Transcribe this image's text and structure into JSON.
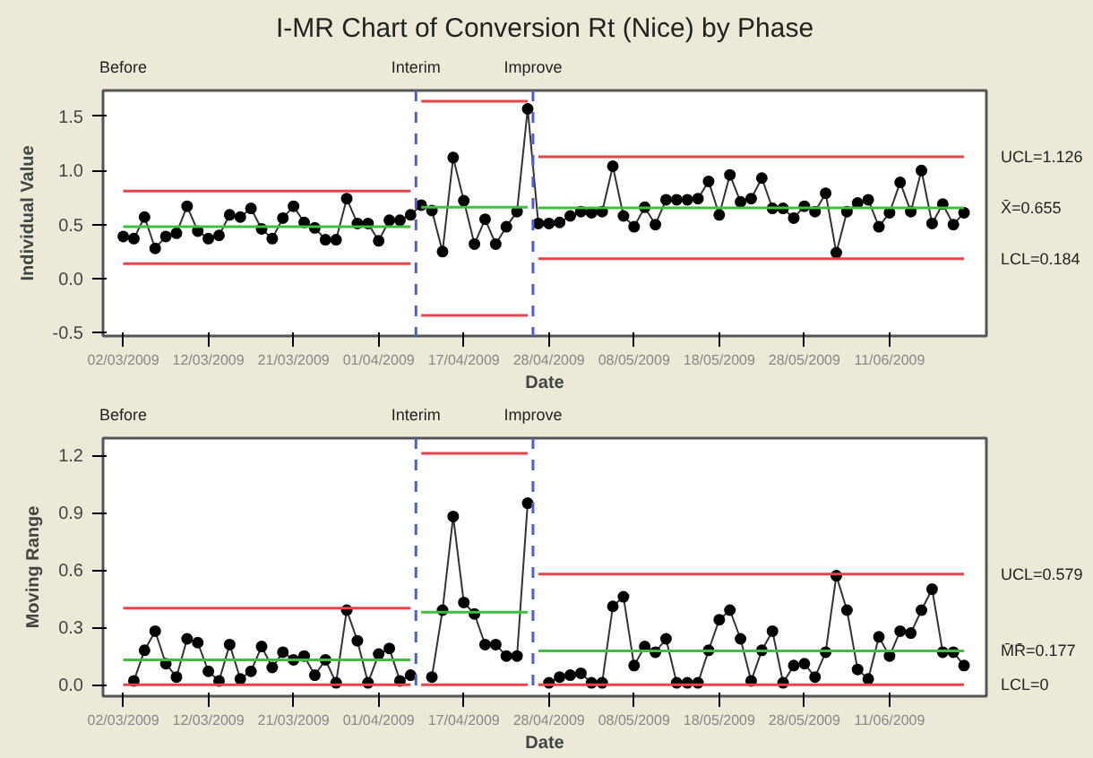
{
  "chart_data": [
    {
      "type": "line",
      "title": "I-MR Chart of Conversion Rt (Nice) by Phase",
      "xlabel": "Date",
      "ylabel": "Individual Value",
      "marker": "circle",
      "grid": false,
      "categories": [
        "02/03/2009",
        null,
        null,
        null,
        null,
        null,
        null,
        null,
        "12/03/2009",
        null,
        null,
        null,
        null,
        null,
        null,
        null,
        "21/03/2009",
        null,
        null,
        null,
        null,
        null,
        null,
        null,
        "01/04/2009",
        null,
        null,
        null,
        null,
        null,
        null,
        null,
        "17/04/2009",
        null,
        null,
        null,
        null,
        null,
        null,
        null,
        "28/04/2009",
        null,
        null,
        null,
        null,
        null,
        null,
        null,
        "08/05/2009",
        null,
        null,
        null,
        null,
        null,
        null,
        null,
        "18/05/2009",
        null,
        null,
        null,
        null,
        null,
        null,
        null,
        "28/05/2009",
        null,
        null,
        null,
        null,
        null,
        null,
        null,
        "11/06/2009",
        null,
        null,
        null,
        null,
        null,
        null,
        null
      ],
      "ylim": [
        -0.53,
        1.74
      ],
      "yticks": [
        {
          "value": -0.5,
          "label": "-0.5"
        },
        {
          "value": 0,
          "label": "0.0"
        },
        {
          "value": 0.5,
          "label": "0.5"
        },
        {
          "value": 1,
          "label": "1.0"
        },
        {
          "value": 1.5,
          "label": "1.5"
        }
      ],
      "series": [
        {
          "color": "#333333",
          "values": [
            0.39,
            0.37,
            0.57,
            0.28,
            0.39,
            0.42,
            0.67,
            0.44,
            0.37,
            0.4,
            0.59,
            0.57,
            0.65,
            0.46,
            0.37,
            0.56,
            0.67,
            0.52,
            0.47,
            0.36,
            0.36,
            0.74,
            0.51,
            0.51,
            0.35,
            0.54,
            0.54,
            0.59,
            0.68,
            0.63,
            0.25,
            1.12,
            0.72,
            0.32,
            0.55,
            0.32,
            0.48,
            0.62,
            1.57,
            0.51,
            0.51,
            0.52,
            0.58,
            0.62,
            0.61,
            0.62,
            1.04,
            0.58,
            0.48,
            0.66,
            0.5,
            0.73,
            0.73,
            0.73,
            0.74,
            0.9,
            0.59,
            0.96,
            0.71,
            0.74,
            0.93,
            0.65,
            0.65,
            0.56,
            0.67,
            0.62,
            0.79,
            0.24,
            0.62,
            0.7,
            0.73,
            0.48,
            0.61,
            0.89,
            0.62,
            1.0,
            0.51,
            0.69,
            0.5,
            0.61
          ]
        },
        {
          "color": "#e8434a",
          "marker": "none",
          "values": [
            0.81,
            0.81,
            0.81,
            0.81,
            0.81,
            0.81,
            0.81,
            0.81,
            0.81,
            0.81,
            0.81,
            0.81,
            0.81,
            0.81,
            0.81,
            0.81,
            0.81,
            0.81,
            0.81,
            0.81,
            0.81,
            0.81,
            0.81,
            0.81,
            0.81,
            0.81,
            0.81,
            0.81,
            null,
            null,
            null,
            null,
            null,
            null,
            null,
            null,
            null,
            null,
            null,
            null,
            null,
            null,
            null,
            null,
            null,
            null,
            null,
            null,
            null,
            null,
            null,
            null,
            null,
            null,
            null,
            null,
            null,
            null,
            null,
            null,
            null,
            null,
            null,
            null,
            null,
            null,
            null,
            null,
            null,
            null,
            null,
            null,
            null,
            null,
            null,
            null,
            null,
            null,
            null,
            null
          ]
        },
        {
          "color": "#3fbf3f",
          "marker": "none",
          "values": [
            0.48,
            0.48,
            0.48,
            0.48,
            0.48,
            0.48,
            0.48,
            0.48,
            0.48,
            0.48,
            0.48,
            0.48,
            0.48,
            0.48,
            0.48,
            0.48,
            0.48,
            0.48,
            0.48,
            0.48,
            0.48,
            0.48,
            0.48,
            0.48,
            0.48,
            0.48,
            0.48,
            0.48,
            null,
            null,
            null,
            null,
            null,
            null,
            null,
            null,
            null,
            null,
            null,
            null,
            null,
            null,
            null,
            null,
            null,
            null,
            null,
            null,
            null,
            null,
            null,
            null,
            null,
            null,
            null,
            null,
            null,
            null,
            null,
            null,
            null,
            null,
            null,
            null,
            null,
            null,
            null,
            null,
            null,
            null,
            null,
            null,
            null,
            null,
            null,
            null,
            null,
            null,
            null,
            null
          ]
        },
        {
          "color": "#e8434a",
          "marker": "none",
          "values": [
            0.14,
            0.14,
            0.14,
            0.14,
            0.14,
            0.14,
            0.14,
            0.14,
            0.14,
            0.14,
            0.14,
            0.14,
            0.14,
            0.14,
            0.14,
            0.14,
            0.14,
            0.14,
            0.14,
            0.14,
            0.14,
            0.14,
            0.14,
            0.14,
            0.14,
            0.14,
            0.14,
            0.14,
            null,
            null,
            null,
            null,
            null,
            null,
            null,
            null,
            null,
            null,
            null,
            null,
            null,
            null,
            null,
            null,
            null,
            null,
            null,
            null,
            null,
            null,
            null,
            null,
            null,
            null,
            null,
            null,
            null,
            null,
            null,
            null,
            null,
            null,
            null,
            null,
            null,
            null,
            null,
            null,
            null,
            null,
            null,
            null,
            null,
            null,
            null,
            null,
            null,
            null,
            null,
            null
          ]
        },
        {
          "color": "#e8434a",
          "marker": "none",
          "values": [
            null,
            null,
            null,
            null,
            null,
            null,
            null,
            null,
            null,
            null,
            null,
            null,
            null,
            null,
            null,
            null,
            null,
            null,
            null,
            null,
            null,
            null,
            null,
            null,
            null,
            null,
            null,
            null,
            1.64,
            1.64,
            1.64,
            1.64,
            1.64,
            1.64,
            1.64,
            1.64,
            1.64,
            1.64,
            1.64,
            null,
            null,
            null,
            null,
            null,
            null,
            null,
            null,
            null,
            null,
            null,
            null,
            null,
            null,
            null,
            null,
            null,
            null,
            null,
            null,
            null,
            null,
            null,
            null,
            null,
            null,
            null,
            null,
            null,
            null,
            null,
            null,
            null,
            null,
            null,
            null,
            null,
            null,
            null,
            null,
            null
          ]
        },
        {
          "color": "#3fbf3f",
          "marker": "none",
          "values": [
            null,
            null,
            null,
            null,
            null,
            null,
            null,
            null,
            null,
            null,
            null,
            null,
            null,
            null,
            null,
            null,
            null,
            null,
            null,
            null,
            null,
            null,
            null,
            null,
            null,
            null,
            null,
            null,
            0.66,
            0.66,
            0.66,
            0.66,
            0.66,
            0.66,
            0.66,
            0.66,
            0.66,
            0.66,
            0.66,
            null,
            null,
            null,
            null,
            null,
            null,
            null,
            null,
            null,
            null,
            null,
            null,
            null,
            null,
            null,
            null,
            null,
            null,
            null,
            null,
            null,
            null,
            null,
            null,
            null,
            null,
            null,
            null,
            null,
            null,
            null,
            null,
            null,
            null,
            null,
            null,
            null,
            null,
            null,
            null,
            null
          ]
        },
        {
          "color": "#e8434a",
          "marker": "none",
          "values": [
            null,
            null,
            null,
            null,
            null,
            null,
            null,
            null,
            null,
            null,
            null,
            null,
            null,
            null,
            null,
            null,
            null,
            null,
            null,
            null,
            null,
            null,
            null,
            null,
            null,
            null,
            null,
            null,
            -0.34,
            -0.34,
            -0.34,
            -0.34,
            -0.34,
            -0.34,
            -0.34,
            -0.34,
            -0.34,
            -0.34,
            -0.34,
            null,
            null,
            null,
            null,
            null,
            null,
            null,
            null,
            null,
            null,
            null,
            null,
            null,
            null,
            null,
            null,
            null,
            null,
            null,
            null,
            null,
            null,
            null,
            null,
            null,
            null,
            null,
            null,
            null,
            null,
            null,
            null,
            null,
            null,
            null,
            null,
            null,
            null,
            null,
            null,
            null
          ]
        },
        {
          "color": "#e8434a",
          "marker": "none",
          "values": [
            null,
            null,
            null,
            null,
            null,
            null,
            null,
            null,
            null,
            null,
            null,
            null,
            null,
            null,
            null,
            null,
            null,
            null,
            null,
            null,
            null,
            null,
            null,
            null,
            null,
            null,
            null,
            null,
            null,
            null,
            null,
            null,
            null,
            null,
            null,
            null,
            null,
            null,
            null,
            1.126,
            1.126,
            1.126,
            1.126,
            1.126,
            1.126,
            1.126,
            1.126,
            1.126,
            1.126,
            1.126,
            1.126,
            1.126,
            1.126,
            1.126,
            1.126,
            1.126,
            1.126,
            1.126,
            1.126,
            1.126,
            1.126,
            1.126,
            1.126,
            1.126,
            1.126,
            1.126,
            1.126,
            1.126,
            1.126,
            1.126,
            1.126,
            1.126,
            1.126,
            1.126,
            1.126,
            1.126,
            1.126,
            1.126,
            1.126,
            1.126
          ]
        },
        {
          "color": "#3fbf3f",
          "marker": "none",
          "values": [
            null,
            null,
            null,
            null,
            null,
            null,
            null,
            null,
            null,
            null,
            null,
            null,
            null,
            null,
            null,
            null,
            null,
            null,
            null,
            null,
            null,
            null,
            null,
            null,
            null,
            null,
            null,
            null,
            null,
            null,
            null,
            null,
            null,
            null,
            null,
            null,
            null,
            null,
            null,
            0.655,
            0.655,
            0.655,
            0.655,
            0.655,
            0.655,
            0.655,
            0.655,
            0.655,
            0.655,
            0.655,
            0.655,
            0.655,
            0.655,
            0.655,
            0.655,
            0.655,
            0.655,
            0.655,
            0.655,
            0.655,
            0.655,
            0.655,
            0.655,
            0.655,
            0.655,
            0.655,
            0.655,
            0.655,
            0.655,
            0.655,
            0.655,
            0.655,
            0.655,
            0.655,
            0.655,
            0.655,
            0.655,
            0.655,
            0.655,
            0.655
          ]
        },
        {
          "color": "#e8434a",
          "marker": "none",
          "values": [
            null,
            null,
            null,
            null,
            null,
            null,
            null,
            null,
            null,
            null,
            null,
            null,
            null,
            null,
            null,
            null,
            null,
            null,
            null,
            null,
            null,
            null,
            null,
            null,
            null,
            null,
            null,
            null,
            null,
            null,
            null,
            null,
            null,
            null,
            null,
            null,
            null,
            null,
            null,
            0.184,
            0.184,
            0.184,
            0.184,
            0.184,
            0.184,
            0.184,
            0.184,
            0.184,
            0.184,
            0.184,
            0.184,
            0.184,
            0.184,
            0.184,
            0.184,
            0.184,
            0.184,
            0.184,
            0.184,
            0.184,
            0.184,
            0.184,
            0.184,
            0.184,
            0.184,
            0.184,
            0.184,
            0.184,
            0.184,
            0.184,
            0.184,
            0.184,
            0.184,
            0.184,
            0.184,
            0.184,
            0.184,
            0.184,
            0.184,
            0.184
          ]
        }
      ],
      "annotations": [
        "Before",
        "Interim",
        "Improve",
        "UCL=1.126",
        "X̄=0.655",
        "LCL=0.184"
      ]
    },
    {
      "type": "line",
      "xlabel": "Date",
      "ylabel": "Moving Range",
      "marker": "circle",
      "grid": false,
      "categories": [
        "02/03/2009",
        null,
        null,
        null,
        null,
        null,
        null,
        null,
        "12/03/2009",
        null,
        null,
        null,
        null,
        null,
        null,
        null,
        "21/03/2009",
        null,
        null,
        null,
        null,
        null,
        null,
        null,
        "01/04/2009",
        null,
        null,
        null,
        null,
        null,
        null,
        null,
        "17/04/2009",
        null,
        null,
        null,
        null,
        null,
        null,
        null,
        "28/04/2009",
        null,
        null,
        null,
        null,
        null,
        null,
        null,
        "08/05/2009",
        null,
        null,
        null,
        null,
        null,
        null,
        null,
        "18/05/2009",
        null,
        null,
        null,
        null,
        null,
        null,
        null,
        "28/05/2009",
        null,
        null,
        null,
        null,
        null,
        null,
        null,
        "11/06/2009",
        null,
        null,
        null,
        null,
        null,
        null,
        null
      ],
      "ylim": [
        -0.06,
        1.29
      ],
      "yticks": [
        {
          "value": 0,
          "label": "0.0"
        },
        {
          "value": 0.3,
          "label": "0.3"
        },
        {
          "value": 0.6,
          "label": "0.6"
        },
        {
          "value": 0.9,
          "label": "0.9"
        },
        {
          "value": 1.2,
          "label": "1.2"
        }
      ],
      "series": [
        {
          "color": "#333333",
          "values": [
            null,
            0.02,
            0.18,
            0.28,
            0.11,
            0.04,
            0.24,
            0.22,
            0.07,
            0.02,
            0.21,
            0.03,
            0.07,
            0.2,
            0.09,
            0.17,
            0.13,
            0.15,
            0.05,
            0.13,
            0.01,
            0.39,
            0.23,
            0.01,
            0.16,
            0.19,
            0.02,
            0.05,
            null,
            0.04,
            0.39,
            0.88,
            0.43,
            0.37,
            0.21,
            0.21,
            0.15,
            0.15,
            0.95,
            null,
            0.01,
            0.04,
            0.05,
            0.06,
            0.01,
            0.01,
            0.41,
            0.46,
            0.1,
            0.2,
            0.17,
            0.24,
            0.01,
            0.01,
            0.01,
            0.18,
            0.34,
            0.39,
            0.24,
            0.02,
            0.18,
            0.28,
            0.01,
            0.1,
            0.11,
            0.04,
            0.17,
            0.57,
            0.39,
            0.08,
            0.03,
            0.25,
            0.15,
            0.28,
            0.27,
            0.39,
            0.5,
            0.17,
            0.17,
            0.1
          ]
        },
        {
          "color": "#e8434a",
          "marker": "none",
          "values": [
            0.4,
            0.4,
            0.4,
            0.4,
            0.4,
            0.4,
            0.4,
            0.4,
            0.4,
            0.4,
            0.4,
            0.4,
            0.4,
            0.4,
            0.4,
            0.4,
            0.4,
            0.4,
            0.4,
            0.4,
            0.4,
            0.4,
            0.4,
            0.4,
            0.4,
            0.4,
            0.4,
            0.4,
            null,
            null,
            null,
            null,
            null,
            null,
            null,
            null,
            null,
            null,
            null,
            null,
            null,
            null,
            null,
            null,
            null,
            null,
            null,
            null,
            null,
            null,
            null,
            null,
            null,
            null,
            null,
            null,
            null,
            null,
            null,
            null,
            null,
            null,
            null,
            null,
            null,
            null,
            null,
            null,
            null,
            null,
            null,
            null,
            null,
            null,
            null,
            null,
            null,
            null,
            null,
            null
          ]
        },
        {
          "color": "#3fbf3f",
          "marker": "none",
          "values": [
            0.13,
            0.13,
            0.13,
            0.13,
            0.13,
            0.13,
            0.13,
            0.13,
            0.13,
            0.13,
            0.13,
            0.13,
            0.13,
            0.13,
            0.13,
            0.13,
            0.13,
            0.13,
            0.13,
            0.13,
            0.13,
            0.13,
            0.13,
            0.13,
            0.13,
            0.13,
            0.13,
            0.13,
            null,
            null,
            null,
            null,
            null,
            null,
            null,
            null,
            null,
            null,
            null,
            null,
            null,
            null,
            null,
            null,
            null,
            null,
            null,
            null,
            null,
            null,
            null,
            null,
            null,
            null,
            null,
            null,
            null,
            null,
            null,
            null,
            null,
            null,
            null,
            null,
            null,
            null,
            null,
            null,
            null,
            null,
            null,
            null,
            null,
            null,
            null,
            null,
            null,
            null,
            null,
            null
          ]
        },
        {
          "color": "#e8434a",
          "marker": "none",
          "values": [
            0,
            0,
            0,
            0,
            0,
            0,
            0,
            0,
            0,
            0,
            0,
            0,
            0,
            0,
            0,
            0,
            0,
            0,
            0,
            0,
            0,
            0,
            0,
            0,
            0,
            0,
            0,
            0,
            null,
            null,
            null,
            null,
            null,
            null,
            null,
            null,
            null,
            null,
            null,
            null,
            null,
            null,
            null,
            null,
            null,
            null,
            null,
            null,
            null,
            null,
            null,
            null,
            null,
            null,
            null,
            null,
            null,
            null,
            null,
            null,
            null,
            null,
            null,
            null,
            null,
            null,
            null,
            null,
            null,
            null,
            null,
            null,
            null,
            null,
            null,
            null,
            null,
            null,
            null,
            null
          ]
        },
        {
          "color": "#e8434a",
          "marker": "none",
          "values": [
            null,
            null,
            null,
            null,
            null,
            null,
            null,
            null,
            null,
            null,
            null,
            null,
            null,
            null,
            null,
            null,
            null,
            null,
            null,
            null,
            null,
            null,
            null,
            null,
            null,
            null,
            null,
            null,
            1.21,
            1.21,
            1.21,
            1.21,
            1.21,
            1.21,
            1.21,
            1.21,
            1.21,
            1.21,
            1.21,
            null,
            null,
            null,
            null,
            null,
            null,
            null,
            null,
            null,
            null,
            null,
            null,
            null,
            null,
            null,
            null,
            null,
            null,
            null,
            null,
            null,
            null,
            null,
            null,
            null,
            null,
            null,
            null,
            null,
            null,
            null,
            null,
            null,
            null,
            null,
            null,
            null,
            null,
            null,
            null,
            null
          ]
        },
        {
          "color": "#3fbf3f",
          "marker": "none",
          "values": [
            null,
            null,
            null,
            null,
            null,
            null,
            null,
            null,
            null,
            null,
            null,
            null,
            null,
            null,
            null,
            null,
            null,
            null,
            null,
            null,
            null,
            null,
            null,
            null,
            null,
            null,
            null,
            null,
            0.38,
            0.38,
            0.38,
            0.38,
            0.38,
            0.38,
            0.38,
            0.38,
            0.38,
            0.38,
            0.38,
            null,
            null,
            null,
            null,
            null,
            null,
            null,
            null,
            null,
            null,
            null,
            null,
            null,
            null,
            null,
            null,
            null,
            null,
            null,
            null,
            null,
            null,
            null,
            null,
            null,
            null,
            null,
            null,
            null,
            null,
            null,
            null,
            null,
            null,
            null,
            null,
            null,
            null,
            null,
            null,
            null
          ]
        },
        {
          "color": "#e8434a",
          "marker": "none",
          "values": [
            null,
            null,
            null,
            null,
            null,
            null,
            null,
            null,
            null,
            null,
            null,
            null,
            null,
            null,
            null,
            null,
            null,
            null,
            null,
            null,
            null,
            null,
            null,
            null,
            null,
            null,
            null,
            null,
            0,
            0,
            0,
            0,
            0,
            0,
            0,
            0,
            0,
            0,
            0,
            null,
            null,
            null,
            null,
            null,
            null,
            null,
            null,
            null,
            null,
            null,
            null,
            null,
            null,
            null,
            null,
            null,
            null,
            null,
            null,
            null,
            null,
            null,
            null,
            null,
            null,
            null,
            null,
            null,
            null,
            null,
            null,
            null,
            null,
            null,
            null,
            null,
            null,
            null,
            null,
            null
          ]
        },
        {
          "color": "#e8434a",
          "marker": "none",
          "values": [
            null,
            null,
            null,
            null,
            null,
            null,
            null,
            null,
            null,
            null,
            null,
            null,
            null,
            null,
            null,
            null,
            null,
            null,
            null,
            null,
            null,
            null,
            null,
            null,
            null,
            null,
            null,
            null,
            null,
            null,
            null,
            null,
            null,
            null,
            null,
            null,
            null,
            null,
            null,
            0.579,
            0.579,
            0.579,
            0.579,
            0.579,
            0.579,
            0.579,
            0.579,
            0.579,
            0.579,
            0.579,
            0.579,
            0.579,
            0.579,
            0.579,
            0.579,
            0.579,
            0.579,
            0.579,
            0.579,
            0.579,
            0.579,
            0.579,
            0.579,
            0.579,
            0.579,
            0.579,
            0.579,
            0.579,
            0.579,
            0.579,
            0.579,
            0.579,
            0.579,
            0.579,
            0.579,
            0.579,
            0.579,
            0.579,
            0.579,
            0.579
          ]
        },
        {
          "color": "#3fbf3f",
          "marker": "none",
          "values": [
            null,
            null,
            null,
            null,
            null,
            null,
            null,
            null,
            null,
            null,
            null,
            null,
            null,
            null,
            null,
            null,
            null,
            null,
            null,
            null,
            null,
            null,
            null,
            null,
            null,
            null,
            null,
            null,
            null,
            null,
            null,
            null,
            null,
            null,
            null,
            null,
            null,
            null,
            null,
            0.177,
            0.177,
            0.177,
            0.177,
            0.177,
            0.177,
            0.177,
            0.177,
            0.177,
            0.177,
            0.177,
            0.177,
            0.177,
            0.177,
            0.177,
            0.177,
            0.177,
            0.177,
            0.177,
            0.177,
            0.177,
            0.177,
            0.177,
            0.177,
            0.177,
            0.177,
            0.177,
            0.177,
            0.177,
            0.177,
            0.177,
            0.177,
            0.177,
            0.177,
            0.177,
            0.177,
            0.177,
            0.177,
            0.177,
            0.177,
            0.177
          ]
        },
        {
          "color": "#e8434a",
          "marker": "none",
          "values": [
            null,
            null,
            null,
            null,
            null,
            null,
            null,
            null,
            null,
            null,
            null,
            null,
            null,
            null,
            null,
            null,
            null,
            null,
            null,
            null,
            null,
            null,
            null,
            null,
            null,
            null,
            null,
            null,
            null,
            null,
            null,
            null,
            null,
            null,
            null,
            null,
            null,
            null,
            null,
            0,
            0,
            0,
            0,
            0,
            0,
            0,
            0,
            0,
            0,
            0,
            0,
            0,
            0,
            0,
            0,
            0,
            0,
            0,
            0,
            0,
            0,
            0,
            0,
            0,
            0,
            0,
            0,
            0,
            0,
            0,
            0,
            0,
            0,
            0,
            0,
            0,
            0,
            0,
            0,
            0
          ]
        }
      ],
      "annotations": [
        "Before",
        "Interim",
        "Improve",
        "UCL=0.579",
        "M̄R̄=0.177",
        "LCL=0"
      ]
    }
  ]
}
